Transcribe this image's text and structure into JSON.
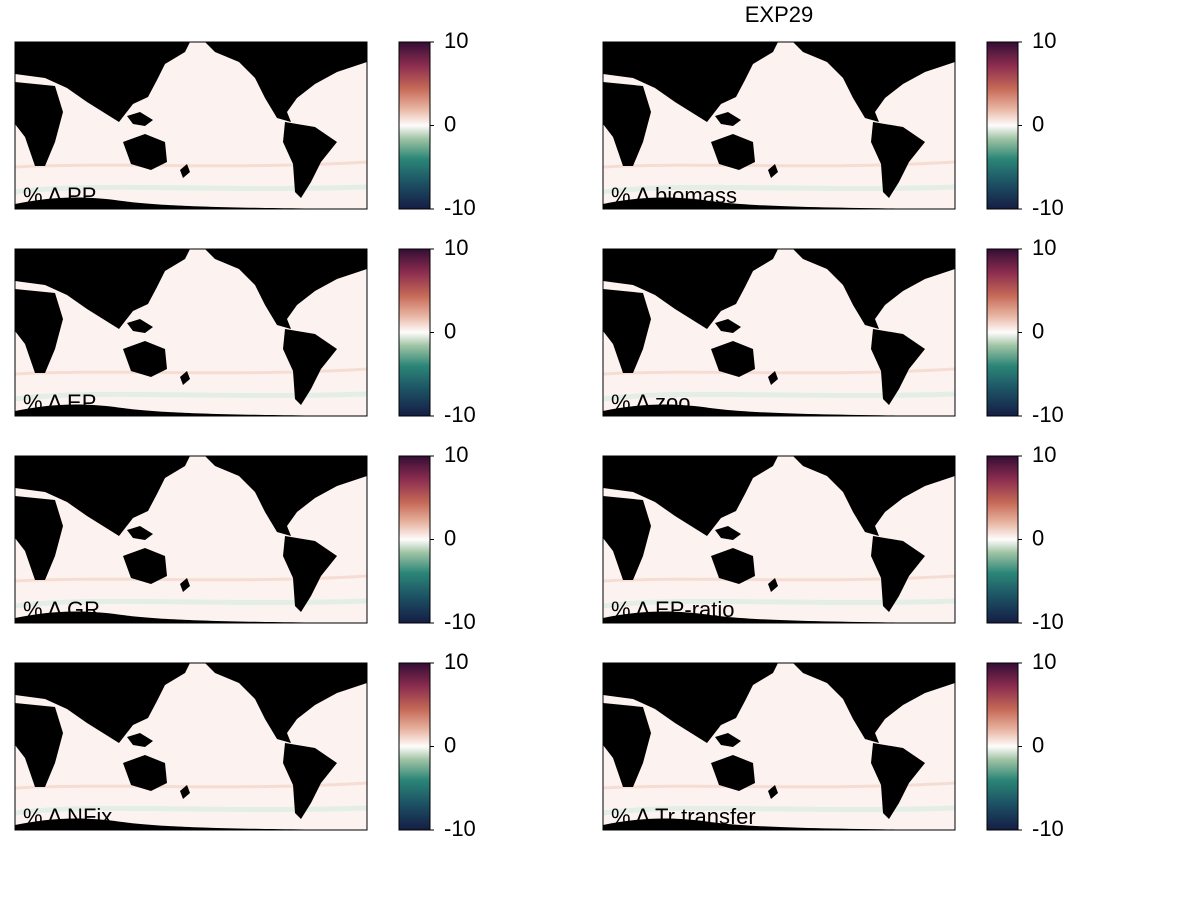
{
  "title": "EXP29",
  "panels": [
    {
      "label": "% Δ PP",
      "colorbar": {
        "lim": [
          -10,
          10
        ],
        "ticks": [
          -10,
          0,
          10
        ]
      }
    },
    {
      "label": "% Δ biomass",
      "colorbar": {
        "lim": [
          -10,
          10
        ],
        "ticks": [
          -10,
          0,
          10
        ]
      }
    },
    {
      "label": "% Δ EP",
      "colorbar": {
        "lim": [
          -10,
          10
        ],
        "ticks": [
          -10,
          0,
          10
        ]
      }
    },
    {
      "label": "% Δ zoo",
      "colorbar": {
        "lim": [
          -10,
          10
        ],
        "ticks": [
          -10,
          0,
          10
        ]
      }
    },
    {
      "label": "% Δ GR",
      "colorbar": {
        "lim": [
          -10,
          10
        ],
        "ticks": [
          -10,
          0,
          10
        ]
      }
    },
    {
      "label": "% Δ EP-ratio",
      "colorbar": {
        "lim": [
          -10,
          10
        ],
        "ticks": [
          -10,
          0,
          10
        ]
      }
    },
    {
      "label": "% Δ NFix",
      "colorbar": {
        "lim": [
          -10,
          10
        ],
        "ticks": [
          -10,
          0,
          10
        ]
      }
    },
    {
      "label": "% Δ Tr transfer",
      "colorbar": {
        "lim": [
          -10,
          10
        ],
        "ticks": [
          -10,
          0,
          10
        ]
      }
    }
  ]
}
